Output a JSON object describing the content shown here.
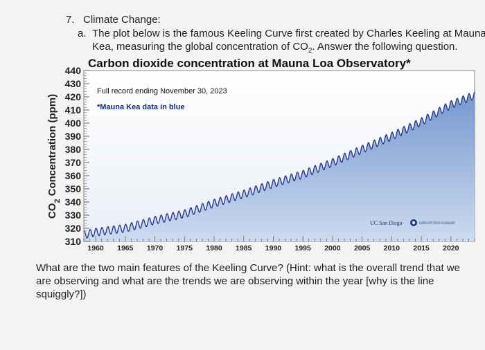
{
  "question": {
    "number": "7.",
    "title": "Climate Change:",
    "sub_letter": "a.",
    "sub_line_1": "The plot below is the famous Keeling Curve first created by Charles Keeling at Mauna",
    "sub_line_2_a": "Kea, measuring the global concentration of CO",
    "sub_line_2_sub": "2",
    "sub_line_2_b": ". Answer the following question.",
    "followup_line_1": "What are the two main features of the Keeling Curve? (Hint: what is the overall trend that we",
    "followup_line_2": "are observing and what are the trends we are observing within the year [why is the line",
    "followup_line_3": "squiggly?])"
  },
  "chart_data": {
    "type": "line",
    "title": "Carbon dioxide concentration at Mauna Loa Observatory*",
    "ylabel_main": "CO",
    "ylabel_sub": "2",
    "ylabel_rest": " Concentration (ppm)",
    "xlabel": "",
    "annotation_1": "Full record ending November 30, 2023",
    "annotation_2": "*Mauna Kea data in blue",
    "logo_1": "UC San Diego",
    "logo_2": "SCRIPPS INSTITUTION OF OCEANOGRAPHY",
    "xlim": [
      1958,
      2024
    ],
    "ylim": [
      310,
      440
    ],
    "x_ticks": [
      1960,
      1965,
      1970,
      1975,
      1980,
      1985,
      1990,
      1995,
      2000,
      2005,
      2010,
      2015,
      2020
    ],
    "y_ticks": [
      310,
      320,
      330,
      340,
      350,
      360,
      370,
      380,
      390,
      400,
      410,
      420,
      430,
      440
    ],
    "series": [
      {
        "x": [
          1958,
          1960,
          1965,
          1970,
          1975,
          1980,
          1985,
          1990,
          1995,
          2000,
          2005,
          2010,
          2015,
          2020,
          2023.9
        ],
        "values": [
          315,
          317,
          320,
          326,
          331,
          339,
          346,
          354,
          361,
          370,
          380,
          390,
          401,
          414,
          421
        ]
      }
    ],
    "seasonal_amplitude_ppm": 3,
    "line_color": "#2a3a8f",
    "fill_color": "#7ea3d6",
    "grid": false
  }
}
